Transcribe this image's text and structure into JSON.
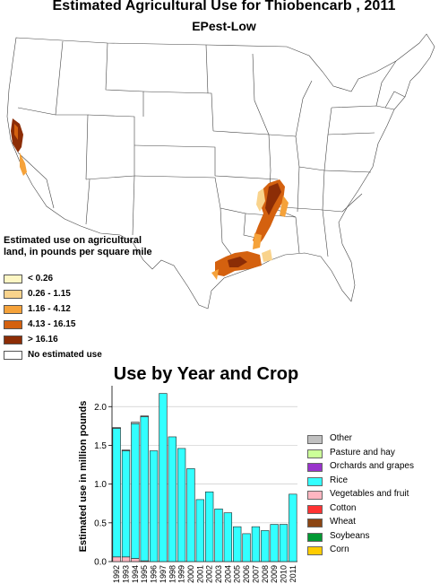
{
  "map": {
    "title": "Estimated Agricultural Use for Thiobencarb , 2011",
    "subtitle": "EPest-Low",
    "legend": {
      "title": "Estimated use on agricultural land, in pounds per square mile",
      "items": [
        {
          "label": "< 0.26",
          "color": "#fdf6c3"
        },
        {
          "label": "0.26 - 1.15",
          "color": "#f9d38c"
        },
        {
          "label": "1.16 - 4.12",
          "color": "#f5a23a"
        },
        {
          "label": "4.13 - 16.15",
          "color": "#d4610f"
        },
        {
          "label": "> 16.16",
          "color": "#8c2d06"
        },
        {
          "label": "No estimated use",
          "color": "#ffffff"
        }
      ]
    }
  },
  "chart_data": {
    "type": "bar",
    "title": "Use by Year and Crop",
    "ylabel": "Estimated use in million pounds",
    "xlabel": "",
    "ylim": [
      0,
      2.2
    ],
    "yticks": [
      "0.0",
      "0.5",
      "1.0",
      "1.5",
      "2.0"
    ],
    "categories": [
      "1992",
      "1993",
      "1994",
      "1995",
      "1996",
      "1997",
      "1998",
      "1999",
      "2000",
      "2001",
      "2002",
      "2003",
      "2004",
      "2005",
      "2006",
      "2007",
      "2008",
      "2009",
      "2010",
      "2011"
    ],
    "series": [
      {
        "name": "Other",
        "color": "#c0c0c0",
        "values": [
          0.01,
          0.01,
          0.02,
          0.01,
          0,
          0,
          0,
          0,
          0,
          0,
          0,
          0,
          0,
          0,
          0,
          0,
          0,
          0,
          0,
          0
        ]
      },
      {
        "name": "Pasture and hay",
        "color": "#ccff99",
        "values": [
          0,
          0,
          0,
          0,
          0,
          0,
          0,
          0,
          0,
          0,
          0,
          0,
          0,
          0,
          0,
          0,
          0,
          0,
          0,
          0
        ]
      },
      {
        "name": "Orchards and grapes",
        "color": "#9933cc",
        "values": [
          0,
          0,
          0,
          0,
          0,
          0,
          0,
          0,
          0,
          0,
          0,
          0,
          0,
          0,
          0,
          0,
          0,
          0,
          0,
          0
        ]
      },
      {
        "name": "Rice",
        "color": "#33ffff",
        "values": [
          1.66,
          1.37,
          1.74,
          1.86,
          1.43,
          2.17,
          1.61,
          1.46,
          1.2,
          0.8,
          0.9,
          0.68,
          0.63,
          0.45,
          0.36,
          0.45,
          0.4,
          0.48,
          0.48,
          0.87
        ]
      },
      {
        "name": "Vegetables and fruit",
        "color": "#ffb6c1",
        "values": [
          0.06,
          0.06,
          0.04,
          0.01,
          0,
          0,
          0,
          0,
          0,
          0,
          0,
          0,
          0,
          0,
          0,
          0,
          0,
          0,
          0,
          0
        ]
      },
      {
        "name": "Cotton",
        "color": "#ff3333",
        "values": [
          0,
          0,
          0,
          0,
          0,
          0,
          0,
          0,
          0,
          0,
          0,
          0,
          0,
          0,
          0,
          0,
          0,
          0,
          0,
          0
        ]
      },
      {
        "name": "Wheat",
        "color": "#8b4513",
        "values": [
          0,
          0,
          0,
          0,
          0,
          0,
          0,
          0,
          0,
          0,
          0,
          0,
          0,
          0,
          0,
          0,
          0,
          0,
          0,
          0
        ]
      },
      {
        "name": "Soybeans",
        "color": "#009933",
        "values": [
          0,
          0,
          0,
          0,
          0,
          0,
          0,
          0,
          0,
          0,
          0,
          0,
          0,
          0,
          0,
          0,
          0,
          0,
          0,
          0
        ]
      },
      {
        "name": "Corn",
        "color": "#ffcc00",
        "values": [
          0,
          0,
          0,
          0,
          0,
          0,
          0,
          0,
          0,
          0,
          0,
          0,
          0,
          0,
          0,
          0,
          0,
          0,
          0,
          0
        ]
      }
    ],
    "legend_order": [
      "Other",
      "Pasture and hay",
      "Orchards and grapes",
      "Rice",
      "Vegetables and fruit",
      "Cotton",
      "Wheat",
      "Soybeans",
      "Corn"
    ],
    "legend_placement": "right",
    "grid": true
  }
}
